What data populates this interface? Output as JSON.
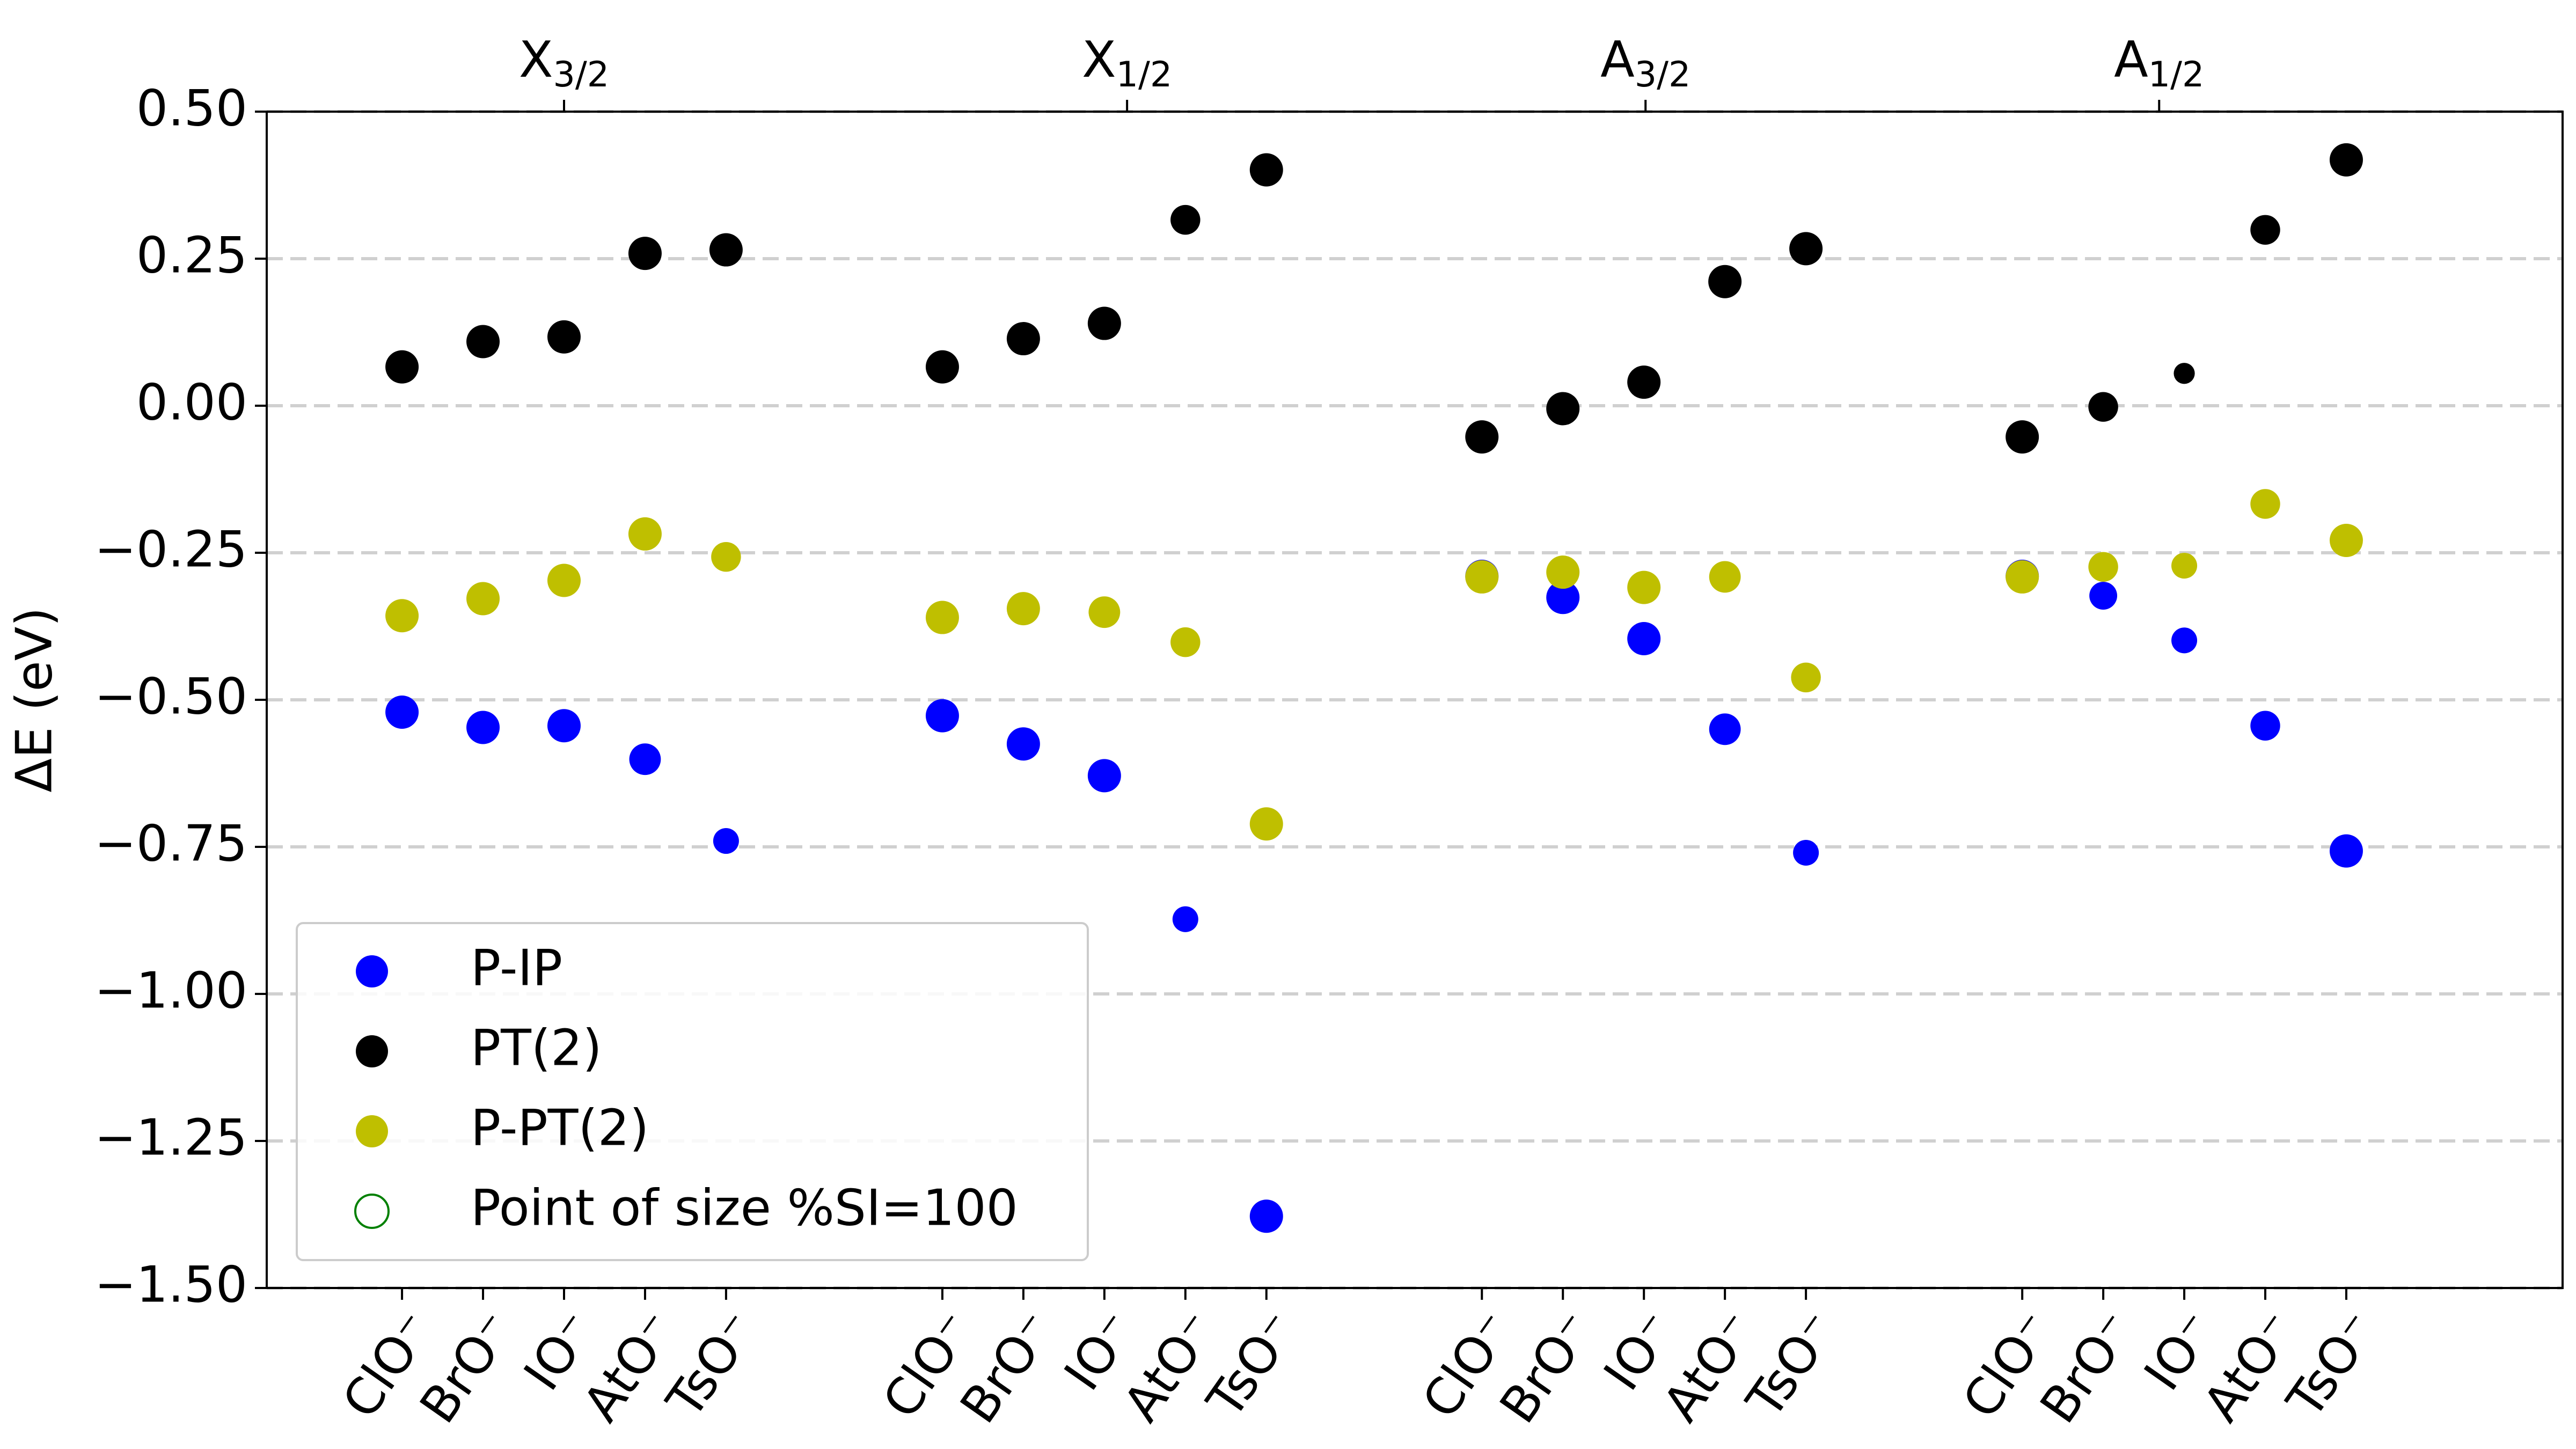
{
  "chart_data": {
    "type": "scatter",
    "ylabel": "ΔE (eV)",
    "categories": [
      "ClO⁻",
      "BrO⁻",
      "IO⁻",
      "AtO⁻",
      "TsO⁻",
      "ClO⁻",
      "BrO⁻",
      "IO⁻",
      "AtO⁻",
      "TsO⁻",
      "ClO⁻",
      "BrO⁻",
      "IO⁻",
      "AtO⁻",
      "TsO⁻",
      "ClO⁻",
      "BrO⁻",
      "IO⁻",
      "AtO⁻",
      "TsO⁻"
    ],
    "x": [
      0,
      1,
      2,
      3,
      4,
      6.67,
      7.67,
      8.67,
      9.67,
      10.67,
      13.33,
      14.33,
      15.33,
      16.33,
      17.33,
      20,
      21,
      22,
      23,
      24
    ],
    "xlim": [
      -1.67,
      26.67
    ],
    "top_xticks": [
      {
        "value": 2,
        "label": "X",
        "subscript": "3/2"
      },
      {
        "value": 8.95,
        "label": "X",
        "subscript": "1/2"
      },
      {
        "value": 15.35,
        "label": "A",
        "subscript": "3/2"
      },
      {
        "value": 21.69,
        "label": "A",
        "subscript": "1/2"
      }
    ],
    "ylim": [
      -1.5,
      0.5
    ],
    "yticks": [
      {
        "value": 0.5,
        "label": "0.50"
      },
      {
        "value": 0.25,
        "label": "0.25"
      },
      {
        "value": 0,
        "label": "0.00"
      },
      {
        "value": -0.25,
        "label": "−0.25"
      },
      {
        "value": -0.5,
        "label": "−0.50"
      },
      {
        "value": -0.75,
        "label": "−0.75"
      },
      {
        "value": -1,
        "label": "−1.00"
      },
      {
        "value": -1.25,
        "label": "−1.25"
      },
      {
        "value": -1.5,
        "label": "−1.50"
      }
    ],
    "grid": true,
    "legend": "lower left",
    "series": [
      {
        "name": "P-IP",
        "color": "#0000ff",
        "values": [
          -0.521,
          -0.547,
          -0.544,
          -0.601,
          -0.74,
          -0.527,
          -0.575,
          -0.629,
          -0.873,
          -1.378,
          -0.29,
          -0.326,
          -0.396,
          -0.55,
          -0.76,
          -0.29,
          -0.323,
          -0.399,
          -0.544,
          -0.757
        ],
        "sizes": [
          100,
          100,
          100,
          90,
          60,
          100,
          100,
          100,
          60,
          100,
          100,
          100,
          100,
          90,
          60,
          100,
          70,
          60,
          80,
          100
        ]
      },
      {
        "name": "PT(2)",
        "color": "#000000",
        "values": [
          0.066,
          0.109,
          0.117,
          0.259,
          0.265,
          0.066,
          0.114,
          0.14,
          0.316,
          0.401,
          -0.053,
          -0.005,
          0.04,
          0.211,
          0.267,
          -0.053,
          -0.002,
          0.055,
          0.299,
          0.418
        ],
        "sizes": [
          100,
          100,
          100,
          100,
          100,
          100,
          100,
          100,
          80,
          100,
          100,
          100,
          100,
          100,
          100,
          100,
          80,
          40,
          80,
          100
        ]
      },
      {
        "name": "P-PT(2)",
        "color": "#bfbf00",
        "values": [
          -0.357,
          -0.328,
          -0.297,
          -0.218,
          -0.257,
          -0.36,
          -0.345,
          -0.351,
          -0.402,
          -0.711,
          -0.291,
          -0.283,
          -0.309,
          -0.291,
          -0.462,
          -0.291,
          -0.274,
          -0.272,
          -0.167,
          -0.229
        ],
        "sizes": [
          100,
          100,
          100,
          100,
          80,
          100,
          100,
          90,
          80,
          100,
          100,
          100,
          100,
          90,
          80,
          100,
          80,
          60,
          80,
          100
        ]
      }
    ],
    "size_legend": {
      "label": "Point of size %SI=100",
      "size": 100,
      "color": "#008000"
    }
  }
}
